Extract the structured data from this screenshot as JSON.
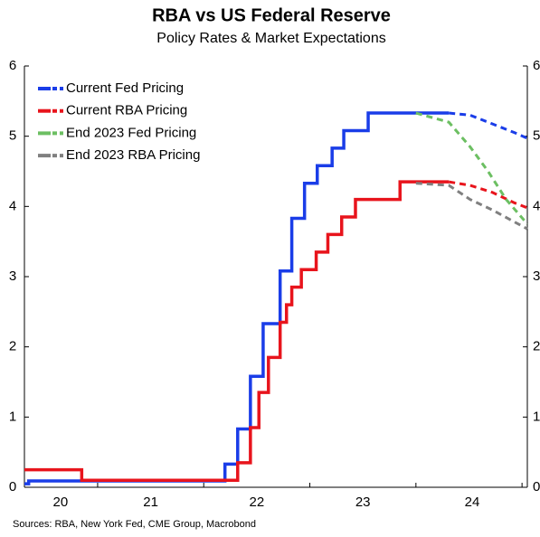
{
  "chart_data": {
    "type": "line",
    "step": "post",
    "title": "RBA vs US Federal Reserve",
    "subtitle": "Policy Rates & Market Expectations",
    "source": "Sources: RBA, New York Fed, CME Group, Macrobond",
    "xlim": [
      2020.31,
      2025.05
    ],
    "xticks": [
      {
        "value": 2020.65,
        "label": "20"
      },
      {
        "value": 2021.5,
        "label": "21"
      },
      {
        "value": 2022.5,
        "label": "22"
      },
      {
        "value": 2023.5,
        "label": "23"
      },
      {
        "value": 2024.53,
        "label": "24"
      }
    ],
    "year_boundaries": [
      2021,
      2022,
      2023,
      2024,
      2025
    ],
    "ylim": [
      0,
      6
    ],
    "yticks": [
      0,
      1,
      2,
      3,
      4,
      5,
      6
    ],
    "y2lim": [
      0,
      6
    ],
    "y2ticks": [
      0,
      1,
      2,
      3,
      4,
      5,
      6
    ],
    "legend": "upper left",
    "series": [
      {
        "name": "Current Fed Pricing",
        "color": "#1a3de8",
        "x": [
          2020.31,
          2020.35,
          2022.2,
          2022.32,
          2022.44,
          2022.56,
          2022.72,
          2022.83,
          2022.95,
          2023.07,
          2023.21,
          2023.32,
          2023.55,
          2024.31
        ],
        "values": [
          0.05,
          0.09,
          0.33,
          0.83,
          1.58,
          2.33,
          3.08,
          3.83,
          4.33,
          4.58,
          4.83,
          5.08,
          5.33,
          5.33
        ],
        "forecast_x": [
          2024.31,
          2024.51,
          2024.68,
          2024.93,
          2025.05
        ],
        "forecast_values": [
          5.33,
          5.3,
          5.2,
          5.05,
          4.97
        ]
      },
      {
        "name": "Current RBA Pricing",
        "color": "#e8141c",
        "x": [
          2020.31,
          2020.85,
          2022.32,
          2022.44,
          2022.52,
          2022.61,
          2022.72,
          2022.78,
          2022.83,
          2022.92,
          2023.06,
          2023.17,
          2023.3,
          2023.43,
          2023.85,
          2024.31
        ],
        "values": [
          0.25,
          0.1,
          0.35,
          0.85,
          1.35,
          1.85,
          2.35,
          2.6,
          2.85,
          3.1,
          3.35,
          3.6,
          3.85,
          4.1,
          4.35,
          4.35
        ],
        "forecast_x": [
          2024.31,
          2024.51,
          2024.72,
          2024.93,
          2025.05
        ],
        "forecast_values": [
          4.35,
          4.3,
          4.2,
          4.05,
          3.98
        ]
      },
      {
        "name": "End 2023 Fed Pricing",
        "color": "#6cbf62",
        "forecast_x": [
          2024.0,
          2024.31,
          2024.51,
          2024.68,
          2024.85,
          2025.05
        ],
        "forecast_values": [
          5.33,
          5.2,
          4.85,
          4.5,
          4.1,
          3.75
        ]
      },
      {
        "name": "End 2023 RBA Pricing",
        "color": "#808080",
        "forecast_x": [
          2024.0,
          2024.31,
          2024.51,
          2024.72,
          2025.05
        ],
        "forecast_values": [
          4.33,
          4.3,
          4.1,
          3.95,
          3.68
        ]
      }
    ]
  }
}
